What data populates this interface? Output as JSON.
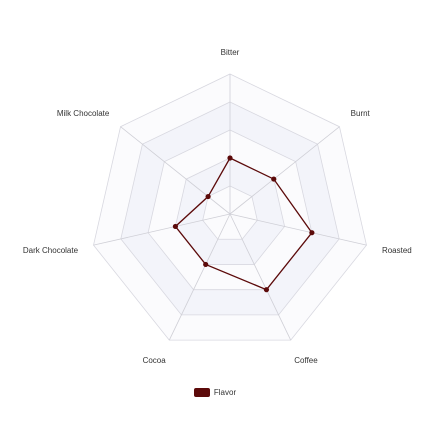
{
  "chart_data": {
    "type": "radar",
    "indicators": [
      "Bitter",
      "Burnt",
      "Roasted",
      "Coffee",
      "Cocoa",
      "Dark Chocolate",
      "Milk Chocolate"
    ],
    "max": 5,
    "split_number": 5,
    "series": [
      {
        "name": "Flavor",
        "values": [
          2,
          2,
          3,
          3,
          2,
          2,
          1
        ]
      }
    ],
    "legend": {
      "placement": "bottom-center"
    },
    "colors": {
      "series": "#5c0a0a",
      "band_light": "#fbfbfd",
      "band_dark": "#f3f4fa",
      "grid_line": "#d8d8e0",
      "axis_line": "#cfcfd6",
      "label_text": "#333333"
    }
  }
}
